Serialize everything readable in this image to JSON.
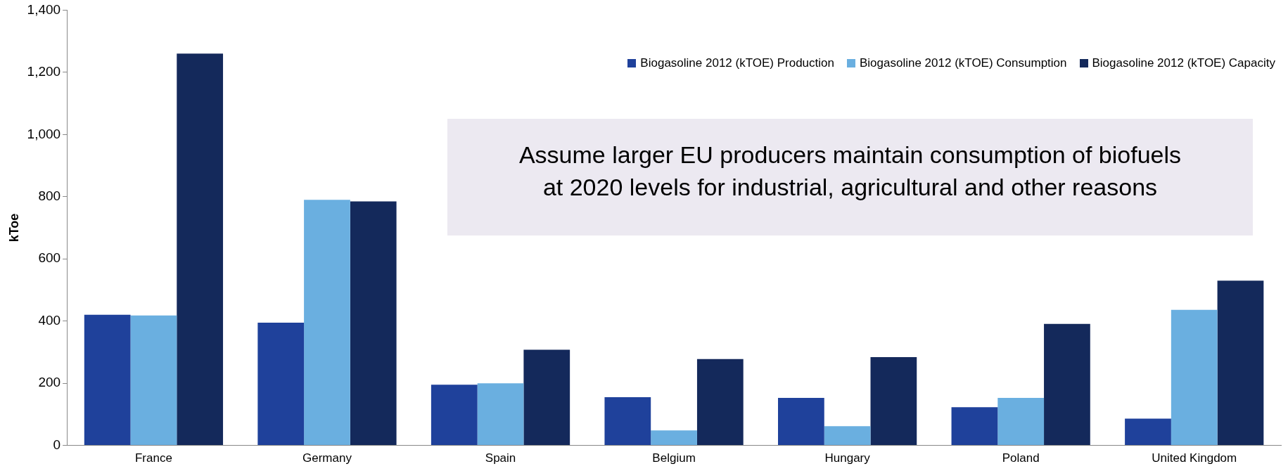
{
  "chart_data": {
    "type": "bar",
    "ylabel": "kToe",
    "categories": [
      "France",
      "Germany",
      "Spain",
      "Belgium",
      "Hungary",
      "Poland",
      "United Kingdom"
    ],
    "series": [
      {
        "name": "Biogasoline 2012 (kTOE) Production",
        "color": "#1f419b",
        "values": [
          420,
          395,
          195,
          155,
          153,
          123,
          86
        ]
      },
      {
        "name": "Biogasoline 2012 (kTOE) Consumption",
        "color": "#6aafe0",
        "values": [
          418,
          790,
          200,
          48,
          62,
          153,
          436
        ]
      },
      {
        "name": "Biogasoline 2012 (kTOE) Capacity",
        "color": "#14295b",
        "values": [
          1260,
          785,
          308,
          278,
          284,
          391,
          530
        ]
      }
    ],
    "ylim": [
      0,
      1400
    ],
    "yticks": [
      {
        "value": 0,
        "label": "0"
      },
      {
        "value": 200,
        "label": "200"
      },
      {
        "value": 400,
        "label": "400"
      },
      {
        "value": 600,
        "label": "600"
      },
      {
        "value": 800,
        "label": "800"
      },
      {
        "value": 1000,
        "label": "1,000"
      },
      {
        "value": 1200,
        "label": "1,200"
      },
      {
        "value": 1400,
        "label": "1,400"
      }
    ],
    "grid": false,
    "legend": "top right",
    "annotations": [
      "Assume larger EU producers maintain consumption of biofuels at 2020 levels for industrial, agricultural and other reasons"
    ]
  }
}
